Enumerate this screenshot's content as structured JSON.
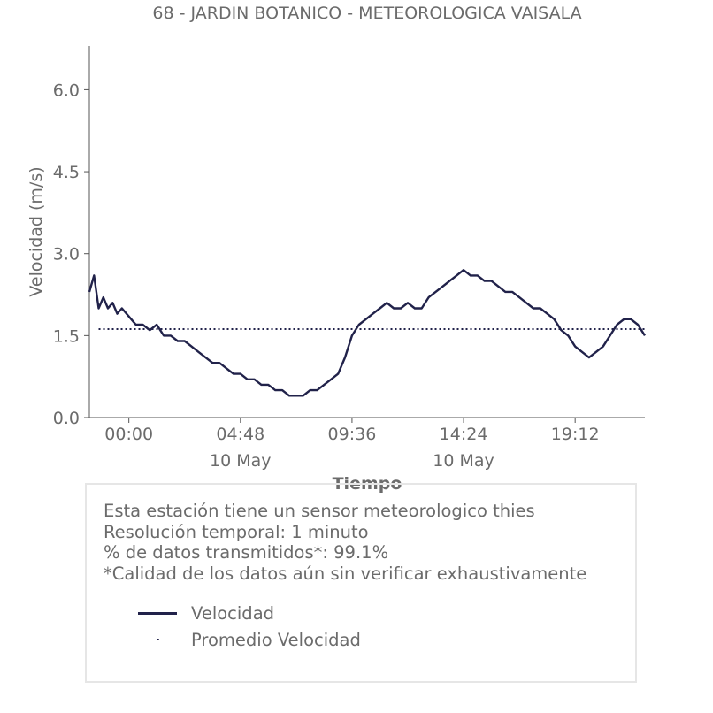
{
  "chart_data": {
    "type": "line",
    "title": "68 - JARDIN BOTANICO - METEOROLOGICA VAISALA",
    "xlabel": "Tiempo",
    "ylabel": "Velocidad (m/s)",
    "y_ticks": [
      "0.0",
      "1.5",
      "3.0",
      "4.5",
      "6.0"
    ],
    "ylim": [
      0,
      6.8
    ],
    "x_ticks": [
      {
        "t": 0,
        "time": "00:00",
        "date": ""
      },
      {
        "t": 4.8,
        "time": "04:48",
        "date": "10 May"
      },
      {
        "t": 9.6,
        "time": "09:36",
        "date": ""
      },
      {
        "t": 14.4,
        "time": "14:24",
        "date": "10 May"
      },
      {
        "t": 19.2,
        "time": "19:12",
        "date": ""
      }
    ],
    "xlim_hours": [
      -1.7,
      22.2
    ],
    "grid": false,
    "series": [
      {
        "name": "Velocidad",
        "style": "solid",
        "color": "#21224a",
        "points": [
          [
            -1.7,
            2.3
          ],
          [
            -1.5,
            2.6
          ],
          [
            -1.3,
            2.0
          ],
          [
            -1.1,
            2.2
          ],
          [
            -0.9,
            2.0
          ],
          [
            -0.7,
            2.1
          ],
          [
            -0.5,
            1.9
          ],
          [
            -0.3,
            2.0
          ],
          [
            -0.1,
            1.9
          ],
          [
            0.1,
            1.8
          ],
          [
            0.3,
            1.7
          ],
          [
            0.6,
            1.7
          ],
          [
            0.9,
            1.6
          ],
          [
            1.2,
            1.7
          ],
          [
            1.5,
            1.5
          ],
          [
            1.8,
            1.5
          ],
          [
            2.1,
            1.4
          ],
          [
            2.4,
            1.4
          ],
          [
            2.7,
            1.3
          ],
          [
            3.0,
            1.2
          ],
          [
            3.3,
            1.1
          ],
          [
            3.6,
            1.0
          ],
          [
            3.9,
            1.0
          ],
          [
            4.2,
            0.9
          ],
          [
            4.5,
            0.8
          ],
          [
            4.8,
            0.8
          ],
          [
            5.1,
            0.7
          ],
          [
            5.4,
            0.7
          ],
          [
            5.7,
            0.6
          ],
          [
            6.0,
            0.6
          ],
          [
            6.3,
            0.5
          ],
          [
            6.6,
            0.5
          ],
          [
            6.9,
            0.4
          ],
          [
            7.2,
            0.4
          ],
          [
            7.5,
            0.4
          ],
          [
            7.8,
            0.5
          ],
          [
            8.1,
            0.5
          ],
          [
            8.4,
            0.6
          ],
          [
            8.7,
            0.7
          ],
          [
            9.0,
            0.8
          ],
          [
            9.3,
            1.1
          ],
          [
            9.6,
            1.5
          ],
          [
            9.9,
            1.7
          ],
          [
            10.2,
            1.8
          ],
          [
            10.5,
            1.9
          ],
          [
            10.8,
            2.0
          ],
          [
            11.1,
            2.1
          ],
          [
            11.4,
            2.0
          ],
          [
            11.7,
            2.0
          ],
          [
            12.0,
            2.1
          ],
          [
            12.3,
            2.0
          ],
          [
            12.6,
            2.0
          ],
          [
            12.9,
            2.2
          ],
          [
            13.2,
            2.3
          ],
          [
            13.5,
            2.4
          ],
          [
            13.8,
            2.5
          ],
          [
            14.1,
            2.6
          ],
          [
            14.4,
            2.7
          ],
          [
            14.7,
            2.6
          ],
          [
            15.0,
            2.6
          ],
          [
            15.3,
            2.5
          ],
          [
            15.6,
            2.5
          ],
          [
            15.9,
            2.4
          ],
          [
            16.2,
            2.3
          ],
          [
            16.5,
            2.3
          ],
          [
            16.8,
            2.2
          ],
          [
            17.1,
            2.1
          ],
          [
            17.4,
            2.0
          ],
          [
            17.7,
            2.0
          ],
          [
            18.0,
            1.9
          ],
          [
            18.3,
            1.8
          ],
          [
            18.6,
            1.6
          ],
          [
            18.9,
            1.5
          ],
          [
            19.2,
            1.3
          ],
          [
            19.5,
            1.2
          ],
          [
            19.8,
            1.1
          ],
          [
            20.1,
            1.2
          ],
          [
            20.4,
            1.3
          ],
          [
            20.7,
            1.5
          ],
          [
            21.0,
            1.7
          ],
          [
            21.3,
            1.8
          ],
          [
            21.6,
            1.8
          ],
          [
            21.9,
            1.7
          ],
          [
            22.2,
            1.5
          ]
        ]
      },
      {
        "name": "Promedio Velocidad",
        "style": "dotted",
        "color": "#21224a",
        "x_range": [
          -1.3,
          22.2
        ],
        "value": 1.62
      }
    ]
  },
  "info": {
    "lines": [
      "Esta estación tiene un sensor meteorologico thies",
      "Resolución temporal: 1 minuto",
      "% de datos transmitidos*: 99.1%",
      "*Calidad de los datos aún sin verificar exhaustivamente"
    ]
  },
  "legend": [
    {
      "label": "Velocidad"
    },
    {
      "label": "Promedio Velocidad"
    }
  ]
}
